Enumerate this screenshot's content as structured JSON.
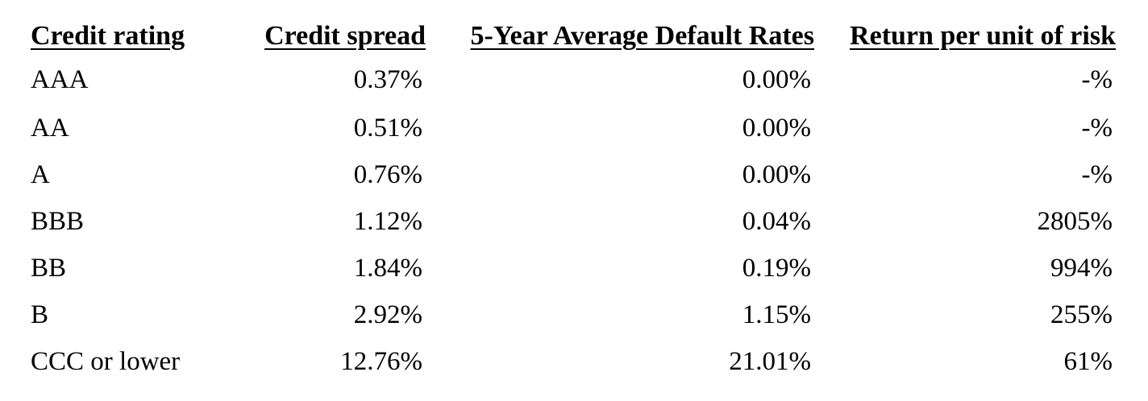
{
  "table": {
    "headers": [
      "Credit rating",
      "Credit spread",
      "5-Year Average Default Rates",
      "Return per unit of risk"
    ],
    "rows": [
      [
        "AAA",
        "0.37%",
        "0.00%",
        "-%"
      ],
      [
        "AA",
        "0.51%",
        "0.00%",
        "-%"
      ],
      [
        "A",
        "0.76%",
        "0.00%",
        "-%"
      ],
      [
        "BBB",
        "1.12%",
        "0.04%",
        "2805%"
      ],
      [
        "BB",
        "1.84%",
        "0.19%",
        "994%"
      ],
      [
        "B",
        "2.92%",
        "1.15%",
        "255%"
      ],
      [
        "CCC or lower",
        "12.76%",
        "21.01%",
        "61%"
      ]
    ]
  }
}
